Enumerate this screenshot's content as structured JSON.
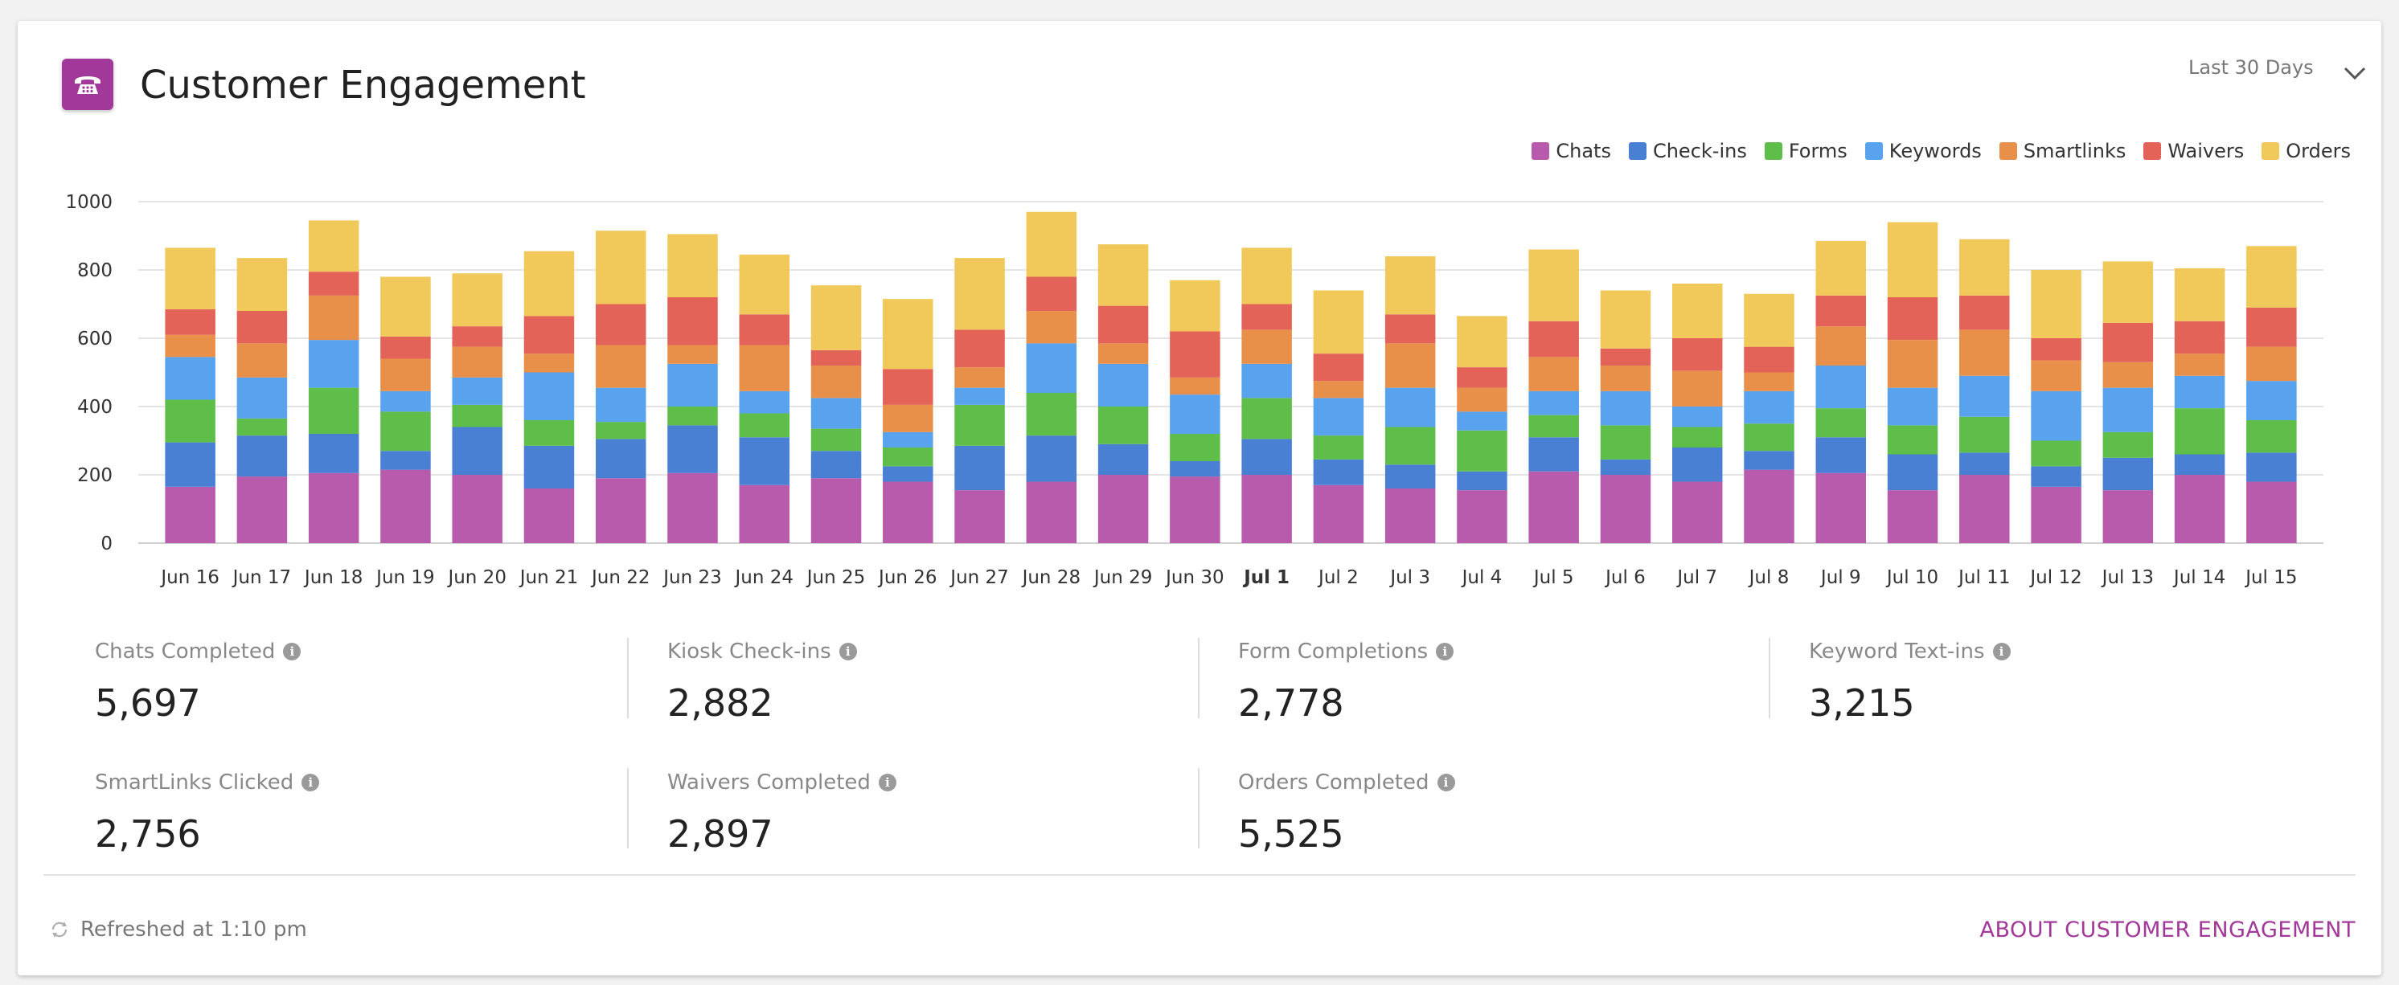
{
  "header": {
    "title": "Customer Engagement",
    "icon": "phone-icon",
    "range_selected": "Last 30 Days"
  },
  "colors": {
    "accent": "#a2399a",
    "Chats": "#b85bad",
    "Check-ins": "#4a80d4",
    "Forms": "#5fbd4a",
    "Keywords": "#58a2ee",
    "Smartlinks": "#e8904a",
    "Waivers": "#e46358",
    "Orders": "#f0c95a"
  },
  "chart_data": {
    "type": "bar",
    "stacked": true,
    "ylim": [
      0,
      1000
    ],
    "yticks": [
      0,
      200,
      400,
      600,
      800,
      1000
    ],
    "grid": true,
    "legend_position": "top-right",
    "categories": [
      "Jun 16",
      "Jun 17",
      "Jun 18",
      "Jun 19",
      "Jun 20",
      "Jun 21",
      "Jun 22",
      "Jun 23",
      "Jun 24",
      "Jun 25",
      "Jun 26",
      "Jun 27",
      "Jun 28",
      "Jun 29",
      "Jun 30",
      "Jul 1",
      "Jul 2",
      "Jul 3",
      "Jul 4",
      "Jul 5",
      "Jul 6",
      "Jul 7",
      "Jul 8",
      "Jul 9",
      "Jul 10",
      "Jul 11",
      "Jul 12",
      "Jul 13",
      "Jul 14",
      "Jul 15"
    ],
    "highlight_category": "Jul 1",
    "series": [
      {
        "name": "Chats",
        "values": [
          165,
          195,
          205,
          215,
          200,
          160,
          190,
          205,
          170,
          190,
          180,
          155,
          180,
          200,
          195,
          200,
          170,
          160,
          155,
          210,
          200,
          180,
          215,
          205,
          155,
          200,
          165,
          155,
          200,
          180
        ]
      },
      {
        "name": "Check-ins",
        "values": [
          130,
          120,
          115,
          55,
          140,
          125,
          115,
          140,
          140,
          80,
          45,
          130,
          135,
          90,
          45,
          105,
          75,
          70,
          55,
          100,
          45,
          100,
          55,
          105,
          105,
          65,
          60,
          95,
          60,
          85
        ]
      },
      {
        "name": "Forms",
        "values": [
          125,
          50,
          135,
          115,
          65,
          75,
          50,
          55,
          70,
          65,
          55,
          120,
          125,
          110,
          80,
          120,
          70,
          110,
          120,
          65,
          100,
          60,
          80,
          85,
          85,
          105,
          75,
          75,
          135,
          95
        ]
      },
      {
        "name": "Keywords",
        "values": [
          125,
          120,
          140,
          60,
          80,
          140,
          100,
          125,
          65,
          90,
          45,
          50,
          145,
          125,
          115,
          100,
          110,
          115,
          55,
          70,
          100,
          60,
          95,
          125,
          110,
          120,
          145,
          130,
          95,
          115
        ]
      },
      {
        "name": "Smartlinks",
        "values": [
          65,
          100,
          130,
          95,
          90,
          55,
          125,
          55,
          135,
          95,
          80,
          60,
          95,
          60,
          50,
          100,
          50,
          130,
          70,
          100,
          75,
          105,
          55,
          115,
          140,
          135,
          90,
          75,
          65,
          100
        ]
      },
      {
        "name": "Waivers",
        "values": [
          75,
          95,
          70,
          65,
          60,
          110,
          120,
          140,
          90,
          45,
          105,
          110,
          100,
          110,
          135,
          75,
          80,
          85,
          60,
          105,
          50,
          95,
          75,
          90,
          125,
          100,
          65,
          115,
          95,
          115
        ]
      },
      {
        "name": "Orders",
        "values": [
          180,
          155,
          150,
          175,
          155,
          190,
          215,
          185,
          175,
          190,
          205,
          210,
          190,
          180,
          150,
          165,
          185,
          170,
          150,
          210,
          170,
          160,
          155,
          160,
          220,
          165,
          200,
          180,
          155,
          180
        ]
      }
    ]
  },
  "stats": [
    {
      "label": "Chats Completed",
      "value": "5,697"
    },
    {
      "label": "Kiosk Check-ins",
      "value": "2,882"
    },
    {
      "label": "Form Completions",
      "value": "2,778"
    },
    {
      "label": "Keyword Text-ins",
      "value": "3,215"
    },
    {
      "label": "SmartLinks Clicked",
      "value": "2,756"
    },
    {
      "label": "Waivers Completed",
      "value": "2,897"
    },
    {
      "label": "Orders Completed",
      "value": "5,525"
    }
  ],
  "footer": {
    "refreshed_text": "Refreshed at 1:10 pm",
    "about_link": "ABOUT CUSTOMER ENGAGEMENT"
  }
}
